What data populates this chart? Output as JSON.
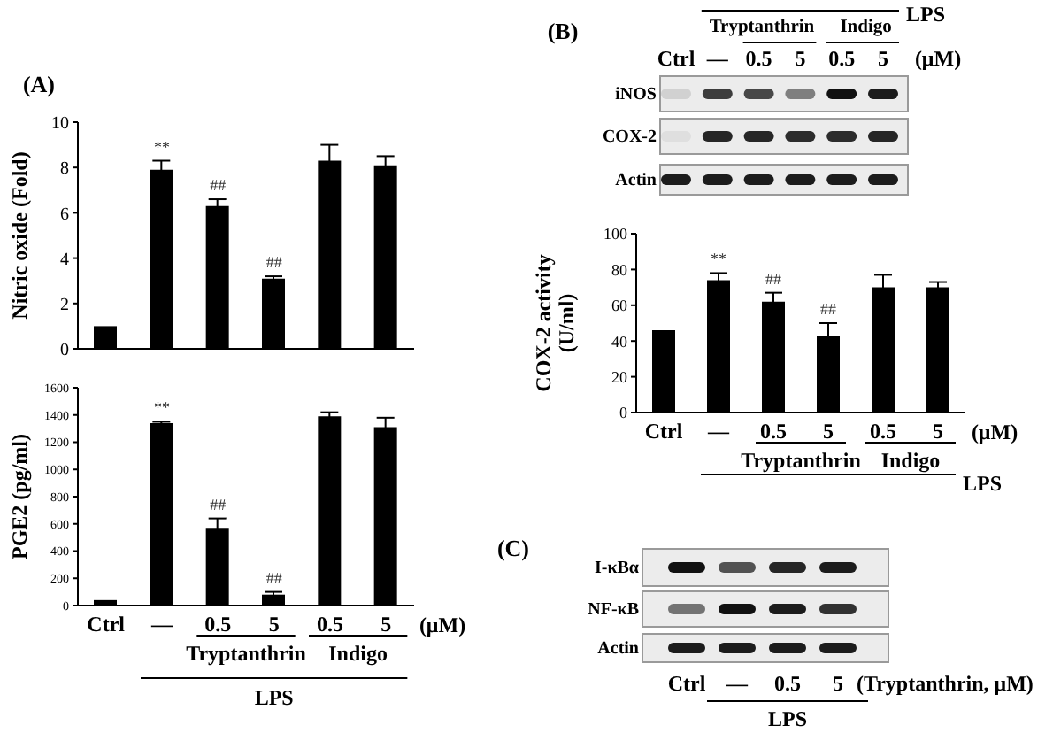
{
  "chart_data": [
    {
      "type": "bar",
      "title": "(A)",
      "ylabel": "Nitric oxide (Fold)",
      "categories": [
        null,
        null,
        null,
        null,
        null,
        null
      ],
      "values": [
        1.0,
        7.9,
        6.3,
        3.1,
        8.3,
        8.1
      ],
      "errors": [
        null,
        0.4,
        0.3,
        0.1,
        0.7,
        0.4
      ],
      "color": "#000000",
      "ylim": [
        0,
        10
      ],
      "yticks": [
        0,
        2,
        4,
        6,
        8,
        10
      ],
      "tick_labels": "y",
      "annotations": [
        "**",
        "##",
        "##"
      ]
    },
    {
      "type": "bar",
      "ylabel": "PGE2 (pg/ml)",
      "xlabel": "(μM)",
      "categories": [
        "Ctrl",
        "—",
        "0.5",
        "5",
        "0.5",
        "5"
      ],
      "values": [
        40,
        1340,
        570,
        80,
        1390,
        1310
      ],
      "errors": [
        null,
        10,
        70,
        20,
        30,
        70
      ],
      "color": "#000000",
      "ylim": [
        0,
        1600
      ],
      "yticks": [
        0,
        200,
        400,
        600,
        800,
        1000,
        1200,
        1400,
        1600
      ],
      "annotations": [
        "**",
        "##",
        "##",
        "Tryptanthrin",
        "Indigo",
        "LPS"
      ]
    },
    {
      "type": "other",
      "title": "(B)",
      "categories": [
        "Ctrl",
        "—",
        "0.5",
        "5",
        "0.5",
        "5"
      ],
      "xlabel": "(μM)",
      "y_categories": [
        "iNOS",
        "COX-2",
        "Actin"
      ],
      "annotations": [
        "Tryptanthrin",
        "Indigo",
        "LPS"
      ]
    },
    {
      "type": "bar",
      "ylabel": "COX-2 activity\n(U/ml)",
      "xlabel": "(μM)",
      "categories": [
        "Ctrl",
        "—",
        "0.5",
        "5",
        "0.5",
        "5"
      ],
      "values": [
        46,
        74,
        62,
        43,
        70,
        70
      ],
      "errors": [
        null,
        4,
        5,
        7,
        7,
        3
      ],
      "color": "#000000",
      "ylim": [
        0,
        100
      ],
      "yticks": [
        0,
        20,
        40,
        60,
        80,
        100
      ],
      "annotations": [
        "**",
        "##",
        "##",
        "Tryptanthrin",
        "Indigo",
        "LPS"
      ]
    },
    {
      "type": "other",
      "title": "(C)",
      "categories": [
        "Ctrl",
        "—",
        "0.5",
        "5"
      ],
      "xlabel": "(Tryptanthrin, μM)",
      "y_categories": [
        "I-κBα",
        "NF-κB",
        "Actin"
      ],
      "annotations": [
        "LPS"
      ]
    }
  ]
}
